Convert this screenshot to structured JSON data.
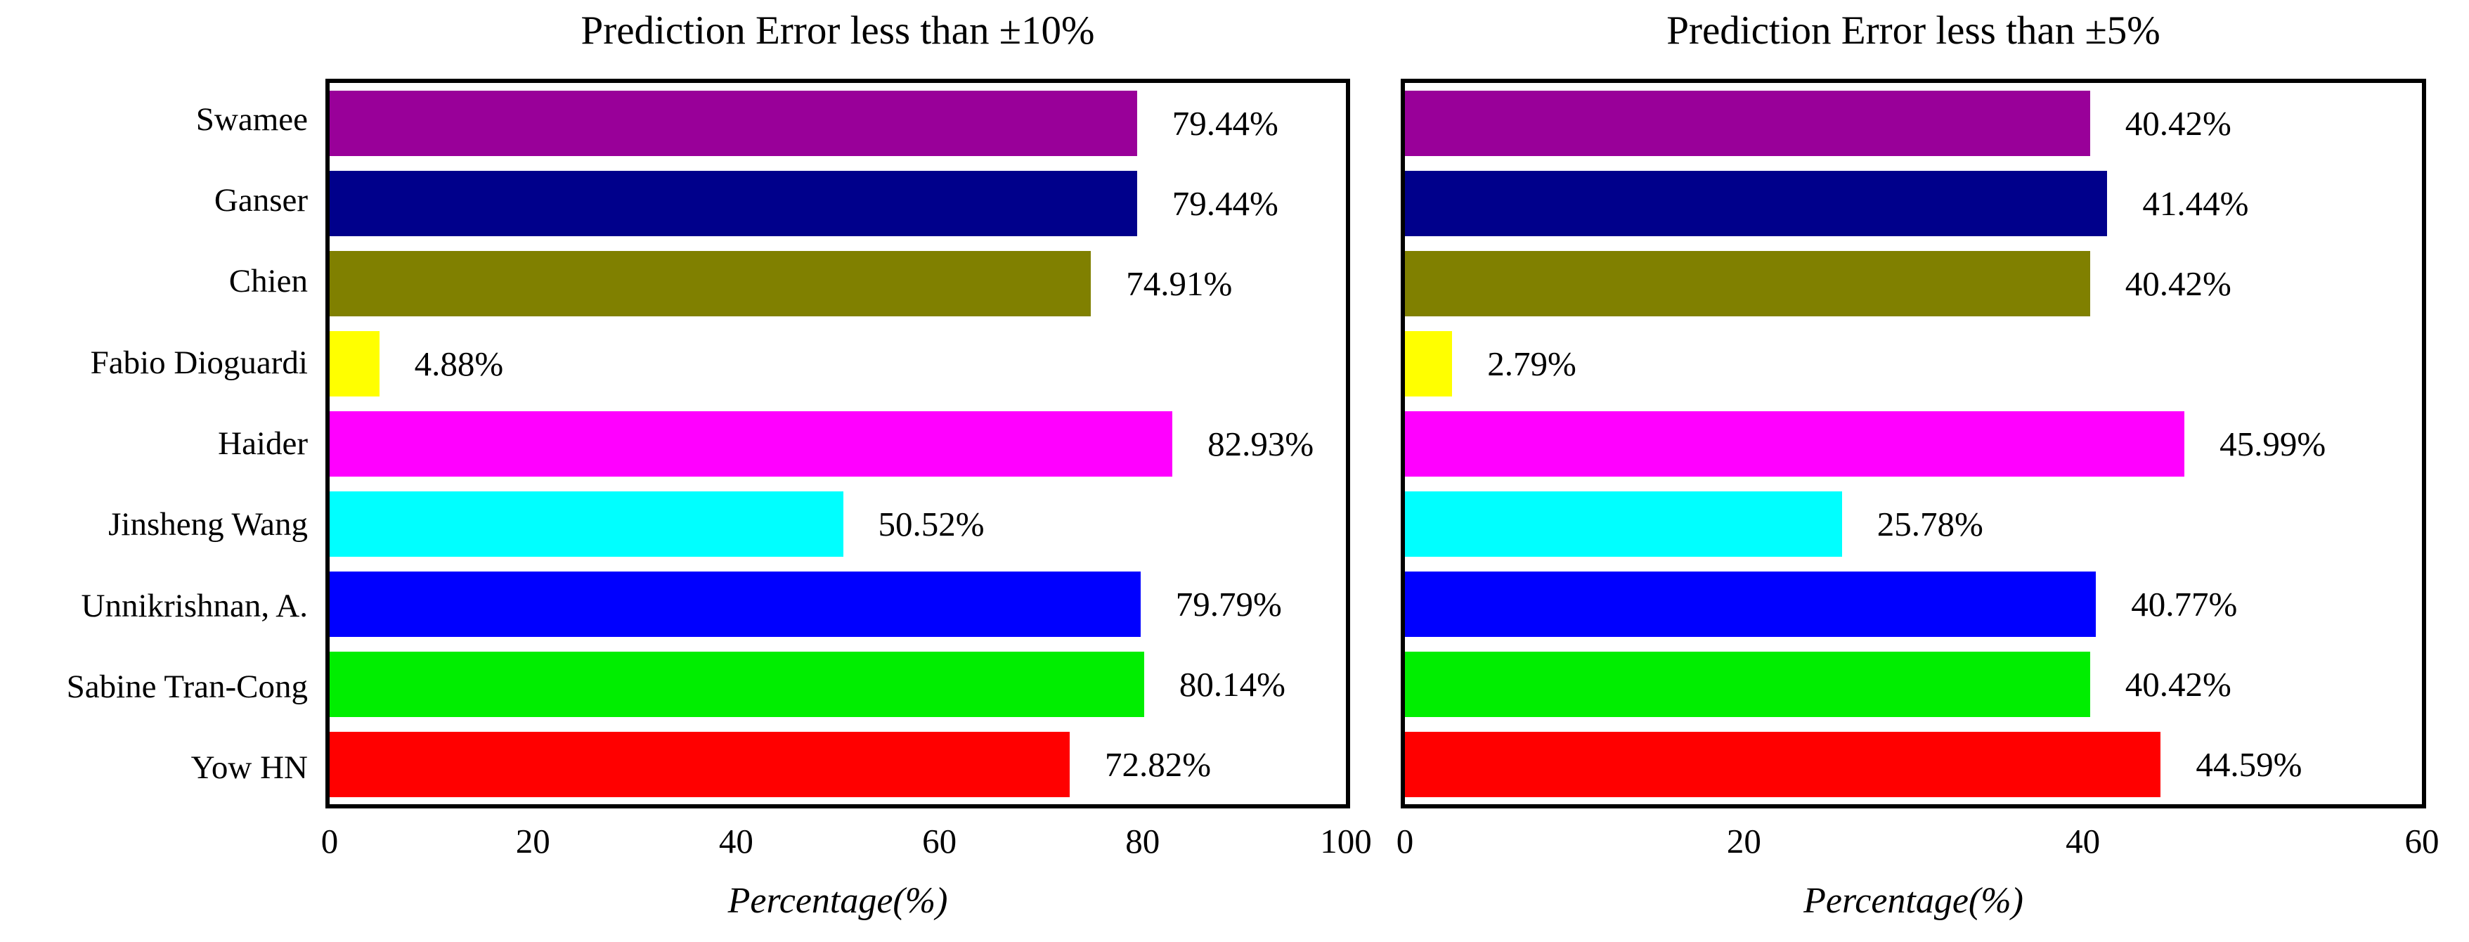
{
  "figure": {
    "background": "#ffffff",
    "axis_color": "#000000",
    "text_color": "#000000"
  },
  "bar_colors": [
    "#990099",
    "#00008B",
    "#808000",
    "#FFFF00",
    "#FF00FF",
    "#00FFFF",
    "#0000FF",
    "#00EE00",
    "#FF0000"
  ],
  "chart_data": [
    {
      "type": "bar",
      "orientation": "horizontal",
      "title": "Prediction Error less than ±10%",
      "xlabel": "Percentage(%)",
      "categories": [
        "Swamee",
        "Ganser",
        "Chien",
        "Fabio Dioguardi",
        "Haider",
        "Jinsheng Wang",
        "Unnikrishnan, A.",
        "Sabine Tran-Cong",
        "Yow HN"
      ],
      "values": [
        79.44,
        79.44,
        74.91,
        4.88,
        82.93,
        50.52,
        79.79,
        80.14,
        72.82
      ],
      "value_labels": [
        "79.44%",
        "79.44%",
        "74.91%",
        "4.88%",
        "82.93%",
        "50.52%",
        "79.79%",
        "80.14%",
        "72.82%"
      ],
      "xlim": [
        0,
        100
      ],
      "xticks": [
        0,
        20,
        40,
        60,
        80,
        100
      ],
      "grid": false,
      "legend": "none"
    },
    {
      "type": "bar",
      "orientation": "horizontal",
      "title": "Prediction Error less than ±5%",
      "xlabel": "Percentage(%)",
      "categories": [
        "Swamee",
        "Ganser",
        "Chien",
        "Fabio Dioguardi",
        "Haider",
        "Jinsheng Wang",
        "Unnikrishnan, A.",
        "Sabine Tran-Cong",
        "Yow HN"
      ],
      "values": [
        40.42,
        41.44,
        40.42,
        2.79,
        45.99,
        25.78,
        40.77,
        40.42,
        44.59
      ],
      "value_labels": [
        "40.42%",
        "41.44%",
        "40.42%",
        "2.79%",
        "45.99%",
        "25.78%",
        "40.77%",
        "40.42%",
        "44.59%"
      ],
      "xlim": [
        0,
        60
      ],
      "xticks": [
        0,
        20,
        40,
        60
      ],
      "grid": false,
      "legend": "none"
    }
  ]
}
